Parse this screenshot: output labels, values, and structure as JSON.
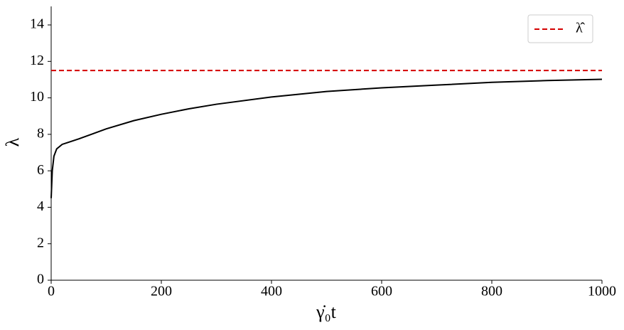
{
  "chart_data": {
    "type": "line",
    "xlabel": "γ̇₀t",
    "ylabel": "λ",
    "xlim": [
      0,
      1000
    ],
    "ylim": [
      0,
      15
    ],
    "xticks": [
      0,
      200,
      400,
      600,
      800,
      1000
    ],
    "yticks": [
      0,
      2,
      4,
      6,
      8,
      10,
      12,
      14
    ],
    "grid": false,
    "legend": "upper right",
    "series": [
      {
        "color": "#000000",
        "style": "solid",
        "x": [
          0,
          2,
          5,
          10,
          20,
          30,
          50,
          100,
          150,
          200,
          250,
          300,
          400,
          500,
          600,
          700,
          800,
          900,
          1000
        ],
        "values": [
          4.5,
          6.0,
          6.8,
          7.2,
          7.45,
          7.55,
          7.75,
          8.3,
          8.75,
          9.1,
          9.4,
          9.65,
          10.05,
          10.35,
          10.55,
          10.7,
          10.85,
          10.95,
          11.02
        ]
      },
      {
        "name": "λ̂",
        "color": "#d40000",
        "style": "dashed",
        "x": [
          0,
          1000
        ],
        "values": [
          11.5,
          11.5
        ]
      }
    ]
  }
}
